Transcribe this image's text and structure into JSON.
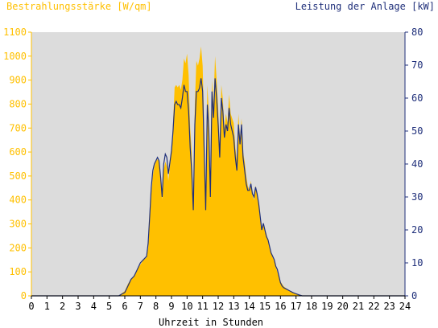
{
  "chart_data": {
    "type": "area",
    "ylabel_left": "Bestrahlungsstärke [W/qm]",
    "ylabel_right": "Leistung der Anlage [kW]",
    "xlabel": "Uhrzeit in Stunden",
    "xlim": [
      0,
      24
    ],
    "ylim_left": [
      0,
      1100
    ],
    "ylim_right": [
      0,
      80
    ],
    "x_ticks": [
      "0",
      "1",
      "2",
      "3",
      "4",
      "5",
      "6",
      "7",
      "8",
      "9",
      "10",
      "11",
      "12",
      "13",
      "14",
      "15",
      "16",
      "17",
      "18",
      "19",
      "20",
      "21",
      "22",
      "23",
      "24"
    ],
    "y_left_ticks": [
      "0",
      "100",
      "200",
      "300",
      "400",
      "500",
      "600",
      "700",
      "800",
      "900",
      "1000",
      "1100"
    ],
    "y_right_ticks": [
      "0",
      "10",
      "20",
      "30",
      "40",
      "50",
      "60",
      "70",
      "80"
    ],
    "grid": false,
    "colors": {
      "irradiance": "#ffc000",
      "power": "#1f2f7a",
      "plot_background": "#dcdcdc",
      "left_axis": "#ffc000",
      "right_axis": "#1f2f7a"
    },
    "series": [
      {
        "x": [
          0,
          5.6,
          5.8,
          6.0,
          6.2,
          6.4,
          6.6,
          6.8,
          7.0,
          7.2,
          7.4,
          7.5,
          7.6,
          7.7,
          7.8,
          7.9,
          8.0,
          8.1,
          8.2,
          8.3,
          8.4,
          8.5,
          8.6,
          8.7,
          8.8,
          9.0,
          9.1,
          9.2,
          9.3,
          9.4,
          9.5,
          9.6,
          9.7,
          9.8,
          9.9,
          10.0,
          10.1,
          10.2,
          10.3,
          10.4,
          10.5,
          10.6,
          10.7,
          10.8,
          10.9,
          11.0,
          11.1,
          11.2,
          11.3,
          11.4,
          11.5,
          11.6,
          11.7,
          11.8,
          11.9,
          12.0,
          12.1,
          12.2,
          12.3,
          12.4,
          12.5,
          12.6,
          12.7,
          12.8,
          12.9,
          13.0,
          13.1,
          13.2,
          13.3,
          13.4,
          13.5,
          13.6,
          13.7,
          13.8,
          13.9,
          14.0,
          14.1,
          14.2,
          14.3,
          14.4,
          14.5,
          14.6,
          14.7,
          14.8,
          14.9,
          15.0,
          15.1,
          15.2,
          15.3,
          15.4,
          15.5,
          15.6,
          15.7,
          15.8,
          15.9,
          16.0,
          16.1,
          16.2,
          16.4,
          16.6,
          16.8,
          17.0,
          17.2,
          17.4,
          17.6,
          17.8,
          18.0,
          18.2,
          18.4,
          18.6,
          18.8,
          19.0,
          19.2,
          24
        ],
        "values": [
          0,
          0,
          10,
          20,
          50,
          70,
          80,
          110,
          130,
          150,
          160,
          200,
          300,
          420,
          500,
          540,
          560,
          570,
          560,
          500,
          400,
          520,
          560,
          540,
          480,
          600,
          720,
          870,
          880,
          870,
          880,
          860,
          900,
          990,
          970,
          1010,
          920,
          700,
          600,
          400,
          800,
          980,
          960,
          990,
          1040,
          960,
          700,
          400,
          880,
          760,
          440,
          900,
          800,
          1000,
          900,
          780,
          600,
          880,
          820,
          700,
          760,
          720,
          840,
          760,
          740,
          720,
          620,
          560,
          760,
          660,
          740,
          600,
          560,
          500,
          460,
          440,
          480,
          420,
          400,
          460,
          420,
          380,
          320,
          280,
          300,
          280,
          260,
          230,
          200,
          180,
          160,
          150,
          120,
          100,
          80,
          60,
          50,
          40,
          30,
          20,
          15,
          10,
          5,
          0,
          0,
          0,
          0,
          0,
          0,
          0,
          0,
          0,
          0,
          0
        ]
      },
      {
        "x": [
          0,
          5.6,
          5.8,
          6.0,
          6.2,
          6.4,
          6.6,
          6.8,
          7.0,
          7.2,
          7.4,
          7.5,
          7.6,
          7.7,
          7.8,
          7.9,
          8.0,
          8.1,
          8.2,
          8.3,
          8.4,
          8.5,
          8.6,
          8.7,
          8.8,
          9.0,
          9.1,
          9.2,
          9.3,
          9.4,
          9.5,
          9.6,
          9.7,
          9.8,
          9.9,
          10.0,
          10.1,
          10.2,
          10.3,
          10.4,
          10.5,
          10.6,
          10.7,
          10.8,
          10.9,
          11.0,
          11.1,
          11.2,
          11.3,
          11.4,
          11.5,
          11.6,
          11.7,
          11.8,
          11.9,
          12.0,
          12.1,
          12.2,
          12.3,
          12.4,
          12.5,
          12.6,
          12.7,
          12.8,
          12.9,
          13.0,
          13.1,
          13.2,
          13.3,
          13.4,
          13.5,
          13.6,
          13.7,
          13.8,
          13.9,
          14.0,
          14.1,
          14.2,
          14.3,
          14.4,
          14.5,
          14.6,
          14.7,
          14.8,
          14.9,
          15.0,
          15.1,
          15.2,
          15.3,
          15.4,
          15.5,
          15.6,
          15.7,
          15.8,
          15.9,
          16.0,
          16.1,
          16.2,
          16.4,
          16.6,
          16.8,
          17.0,
          17.2,
          17.4,
          17.6,
          17.8,
          18.0,
          18.2,
          18.4,
          18.6,
          18.8,
          19.0,
          19.2,
          24
        ],
        "values": [
          0,
          0,
          0.5,
          1,
          3,
          5,
          6,
          8,
          10,
          11,
          12,
          16,
          24,
          33,
          38,
          40,
          41,
          42,
          41,
          36,
          30,
          40,
          43,
          42,
          37,
          44,
          50,
          58,
          59,
          58,
          58,
          57,
          60,
          64,
          62,
          62,
          56,
          45,
          38,
          26,
          52,
          62,
          62,
          63,
          66,
          62,
          44,
          26,
          58,
          50,
          30,
          62,
          54,
          66,
          60,
          52,
          42,
          60,
          56,
          48,
          52,
          50,
          57,
          52,
          50,
          48,
          42,
          38,
          52,
          46,
          52,
          42,
          38,
          34,
          32,
          32,
          34,
          31,
          30,
          33,
          31,
          28,
          24,
          20,
          22,
          20,
          18,
          17,
          15,
          13,
          12,
          11,
          9,
          8,
          6,
          4,
          3,
          2.5,
          2,
          1.5,
          1,
          0.6,
          0.3,
          0,
          0,
          0,
          0,
          0,
          0,
          0,
          0,
          0,
          0,
          0
        ]
      }
    ]
  }
}
